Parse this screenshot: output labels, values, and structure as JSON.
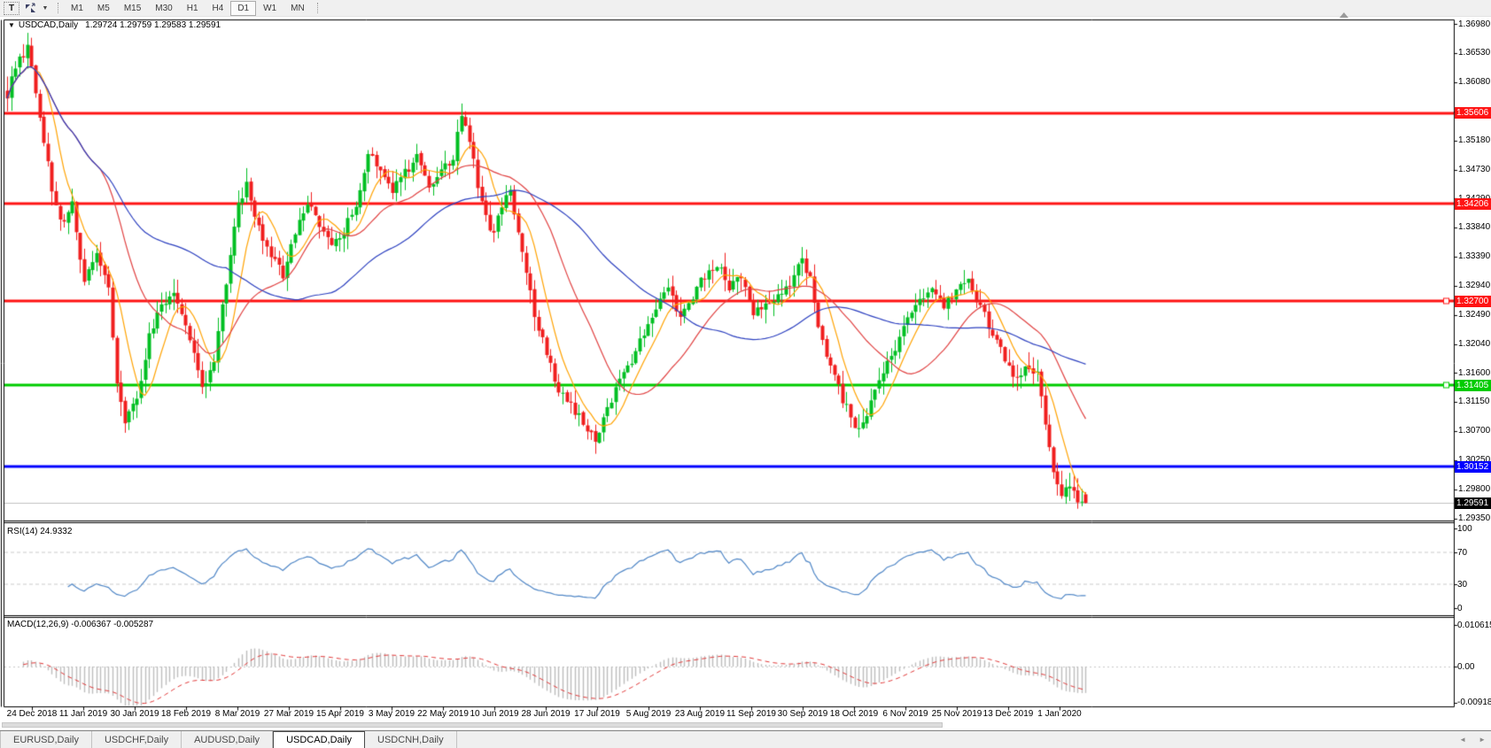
{
  "icons": {
    "collapse_arrow": "▼",
    "dropdown_caret": "▼",
    "tab_prev": "◄",
    "tab_next": "►"
  },
  "toolbar": {
    "text_tool_label": "T",
    "timeframes": [
      "M1",
      "M5",
      "M15",
      "M30",
      "H1",
      "H4",
      "D1",
      "W1",
      "MN"
    ],
    "active_timeframe": "D1"
  },
  "chart_header": {
    "symbol_title": "USDCAD,Daily",
    "ohlc_text": "1.29724 1.29759 1.29583 1.29591"
  },
  "panels": {
    "rsi_label": "RSI(14) 24.9332",
    "macd_label": "MACD(12,26,9) -0.006367 -0.005287"
  },
  "price_axis": {
    "ticks": [
      "1.36980",
      "1.36530",
      "1.36080",
      "1.35630",
      "1.35180",
      "1.34730",
      "1.34290",
      "1.33840",
      "1.33390",
      "1.32940",
      "1.32490",
      "1.32040",
      "1.31600",
      "1.31150",
      "1.30700",
      "1.30250",
      "1.29800",
      "1.29350"
    ]
  },
  "rsi_axis": {
    "ticks": [
      "100",
      "70",
      "30",
      "0"
    ]
  },
  "macd_axis": {
    "ticks": [
      "0.010615",
      "0.00",
      "-0.009181"
    ]
  },
  "date_axis": {
    "labels": [
      "24 Dec 2018",
      "11 Jan 2019",
      "30 Jan 2019",
      "18 Feb 2019",
      "8 Mar 2019",
      "27 Mar 2019",
      "15 Apr 2019",
      "3 May 2019",
      "22 May 2019",
      "10 Jun 2019",
      "28 Jun 2019",
      "17 Jul 2019",
      "5 Aug 2019",
      "23 Aug 2019",
      "11 Sep 2019",
      "30 Sep 2019",
      "18 Oct 2019",
      "6 Nov 2019",
      "25 Nov 2019",
      "13 Dec 2019",
      "1 Jan 2020"
    ]
  },
  "tabs": {
    "items": [
      "EURUSD,Daily",
      "USDCHF,Daily",
      "AUDUSD,Daily",
      "USDCAD,Daily",
      "USDCNH,Daily"
    ],
    "active": "USDCAD,Daily"
  },
  "colors": {
    "bull_candle": "#00bf22",
    "bear_candle": "#f01e1e",
    "ma_fast": "#ffa200",
    "ma_mid": "#e04040",
    "ma_slow": "#2b3fbf",
    "rsi_line": "#4f86c6",
    "macd_hist": "#bdbdbd",
    "macd_signal": "#e03636",
    "level_silver": "#c8c8c8",
    "current_price_line": "#c0c0c0",
    "current_price_label_bg": "#000000"
  },
  "chart_data": {
    "type": "candlestick",
    "symbol": "USDCAD",
    "timeframe": "Daily",
    "title": "USDCAD,Daily",
    "last_ohlc": {
      "open": 1.29724,
      "high": 1.29759,
      "low": 1.29583,
      "close": 1.29591
    },
    "bars_total": 267,
    "ylim": [
      1.2929,
      1.3704
    ],
    "x_tick_labels": [
      "24 Dec 2018",
      "11 Jan 2019",
      "30 Jan 2019",
      "18 Feb 2019",
      "8 Mar 2019",
      "27 Mar 2019",
      "15 Apr 2019",
      "3 May 2019",
      "22 May 2019",
      "10 Jun 2019",
      "28 Jun 2019",
      "17 Jul 2019",
      "5 Aug 2019",
      "23 Aug 2019",
      "11 Sep 2019",
      "30 Sep 2019",
      "18 Oct 2019",
      "6 Nov 2019",
      "25 Nov 2019",
      "13 Dec 2019",
      "1 Jan 2020"
    ],
    "price_path_anchors": [
      [
        0,
        1.3585
      ],
      [
        2,
        1.3635
      ],
      [
        5,
        1.366
      ],
      [
        8,
        1.356
      ],
      [
        11,
        1.344
      ],
      [
        13,
        1.339
      ],
      [
        16,
        1.342
      ],
      [
        19,
        1.33
      ],
      [
        22,
        1.334
      ],
      [
        25,
        1.329
      ],
      [
        27,
        1.315
      ],
      [
        29,
        1.308
      ],
      [
        32,
        1.312
      ],
      [
        35,
        1.322
      ],
      [
        38,
        1.326
      ],
      [
        41,
        1.329
      ],
      [
        44,
        1.324
      ],
      [
        46,
        1.319
      ],
      [
        48,
        1.3135
      ],
      [
        51,
        1.318
      ],
      [
        54,
        1.33
      ],
      [
        57,
        1.342
      ],
      [
        59,
        1.345
      ],
      [
        62,
        1.338
      ],
      [
        65,
        1.334
      ],
      [
        68,
        1.331
      ],
      [
        71,
        1.338
      ],
      [
        74,
        1.342
      ],
      [
        77,
        1.339
      ],
      [
        80,
        1.335
      ],
      [
        83,
        1.338
      ],
      [
        86,
        1.342
      ],
      [
        89,
        1.35
      ],
      [
        92,
        1.347
      ],
      [
        95,
        1.344
      ],
      [
        98,
        1.347
      ],
      [
        101,
        1.349
      ],
      [
        104,
        1.345
      ],
      [
        107,
        1.347
      ],
      [
        110,
        1.349
      ],
      [
        112,
        1.356
      ],
      [
        114,
        1.352
      ],
      [
        116,
        1.345
      ],
      [
        118,
        1.34
      ],
      [
        120,
        1.337
      ],
      [
        122,
        1.342
      ],
      [
        124,
        1.344
      ],
      [
        127,
        1.335
      ],
      [
        130,
        1.325
      ],
      [
        133,
        1.319
      ],
      [
        136,
        1.313
      ],
      [
        139,
        1.311
      ],
      [
        142,
        1.308
      ],
      [
        145,
        1.306
      ],
      [
        148,
        1.31
      ],
      [
        151,
        1.315
      ],
      [
        154,
        1.318
      ],
      [
        157,
        1.322
      ],
      [
        160,
        1.326
      ],
      [
        163,
        1.329
      ],
      [
        166,
        1.324
      ],
      [
        169,
        1.328
      ],
      [
        172,
        1.331
      ],
      [
        175,
        1.333
      ],
      [
        178,
        1.329
      ],
      [
        181,
        1.331
      ],
      [
        184,
        1.325
      ],
      [
        187,
        1.327
      ],
      [
        190,
        1.328
      ],
      [
        193,
        1.33
      ],
      [
        196,
        1.333
      ],
      [
        198,
        1.331
      ],
      [
        200,
        1.323
      ],
      [
        202,
        1.318
      ],
      [
        204,
        1.315
      ],
      [
        206,
        1.312
      ],
      [
        208,
        1.309
      ],
      [
        210,
        1.307
      ],
      [
        213,
        1.311
      ],
      [
        216,
        1.316
      ],
      [
        219,
        1.32
      ],
      [
        222,
        1.325
      ],
      [
        225,
        1.327
      ],
      [
        228,
        1.329
      ],
      [
        231,
        1.326
      ],
      [
        234,
        1.329
      ],
      [
        237,
        1.33
      ],
      [
        240,
        1.326
      ],
      [
        243,
        1.322
      ],
      [
        246,
        1.318
      ],
      [
        249,
        1.315
      ],
      [
        252,
        1.317
      ],
      [
        254,
        1.316
      ],
      [
        256,
        1.308
      ],
      [
        258,
        1.3
      ],
      [
        260,
        1.297
      ],
      [
        262,
        1.2985
      ],
      [
        264,
        1.2962
      ],
      [
        266,
        1.29591
      ]
    ],
    "horizontal_lines": [
      {
        "price": 1.35606,
        "label": "1.35606",
        "color": "#ff1414",
        "width": 3,
        "marker": false
      },
      {
        "price": 1.34206,
        "label": "1.34206",
        "color": "#ff1414",
        "width": 3,
        "marker": false
      },
      {
        "price": 1.327,
        "label": "1.32700",
        "color": "#ff1414",
        "width": 3,
        "marker": true
      },
      {
        "price": 1.31405,
        "label": "1.31405",
        "color": "#00cc00",
        "width": 3,
        "marker": true
      },
      {
        "price": 1.30152,
        "label": "1.30152",
        "color": "#0000ff",
        "width": 3,
        "marker": false
      }
    ],
    "current_price": {
      "value": 1.29591,
      "label": "1.29591"
    },
    "moving_averages": [
      {
        "period": 8,
        "color": "#ffa200"
      },
      {
        "period": 24,
        "color": "#e04040"
      },
      {
        "period": 55,
        "color": "#2b3fbf"
      }
    ],
    "indicators": {
      "rsi": {
        "name": "RSI",
        "period": 14,
        "value": 24.9332,
        "levels": [
          70,
          30
        ],
        "range": [
          0,
          100
        ]
      },
      "macd": {
        "name": "MACD",
        "fast": 12,
        "slow": 26,
        "signal": 9,
        "value": -0.006367,
        "signal_value": -0.005287,
        "range": [
          -0.009181,
          0.010615
        ]
      }
    }
  }
}
